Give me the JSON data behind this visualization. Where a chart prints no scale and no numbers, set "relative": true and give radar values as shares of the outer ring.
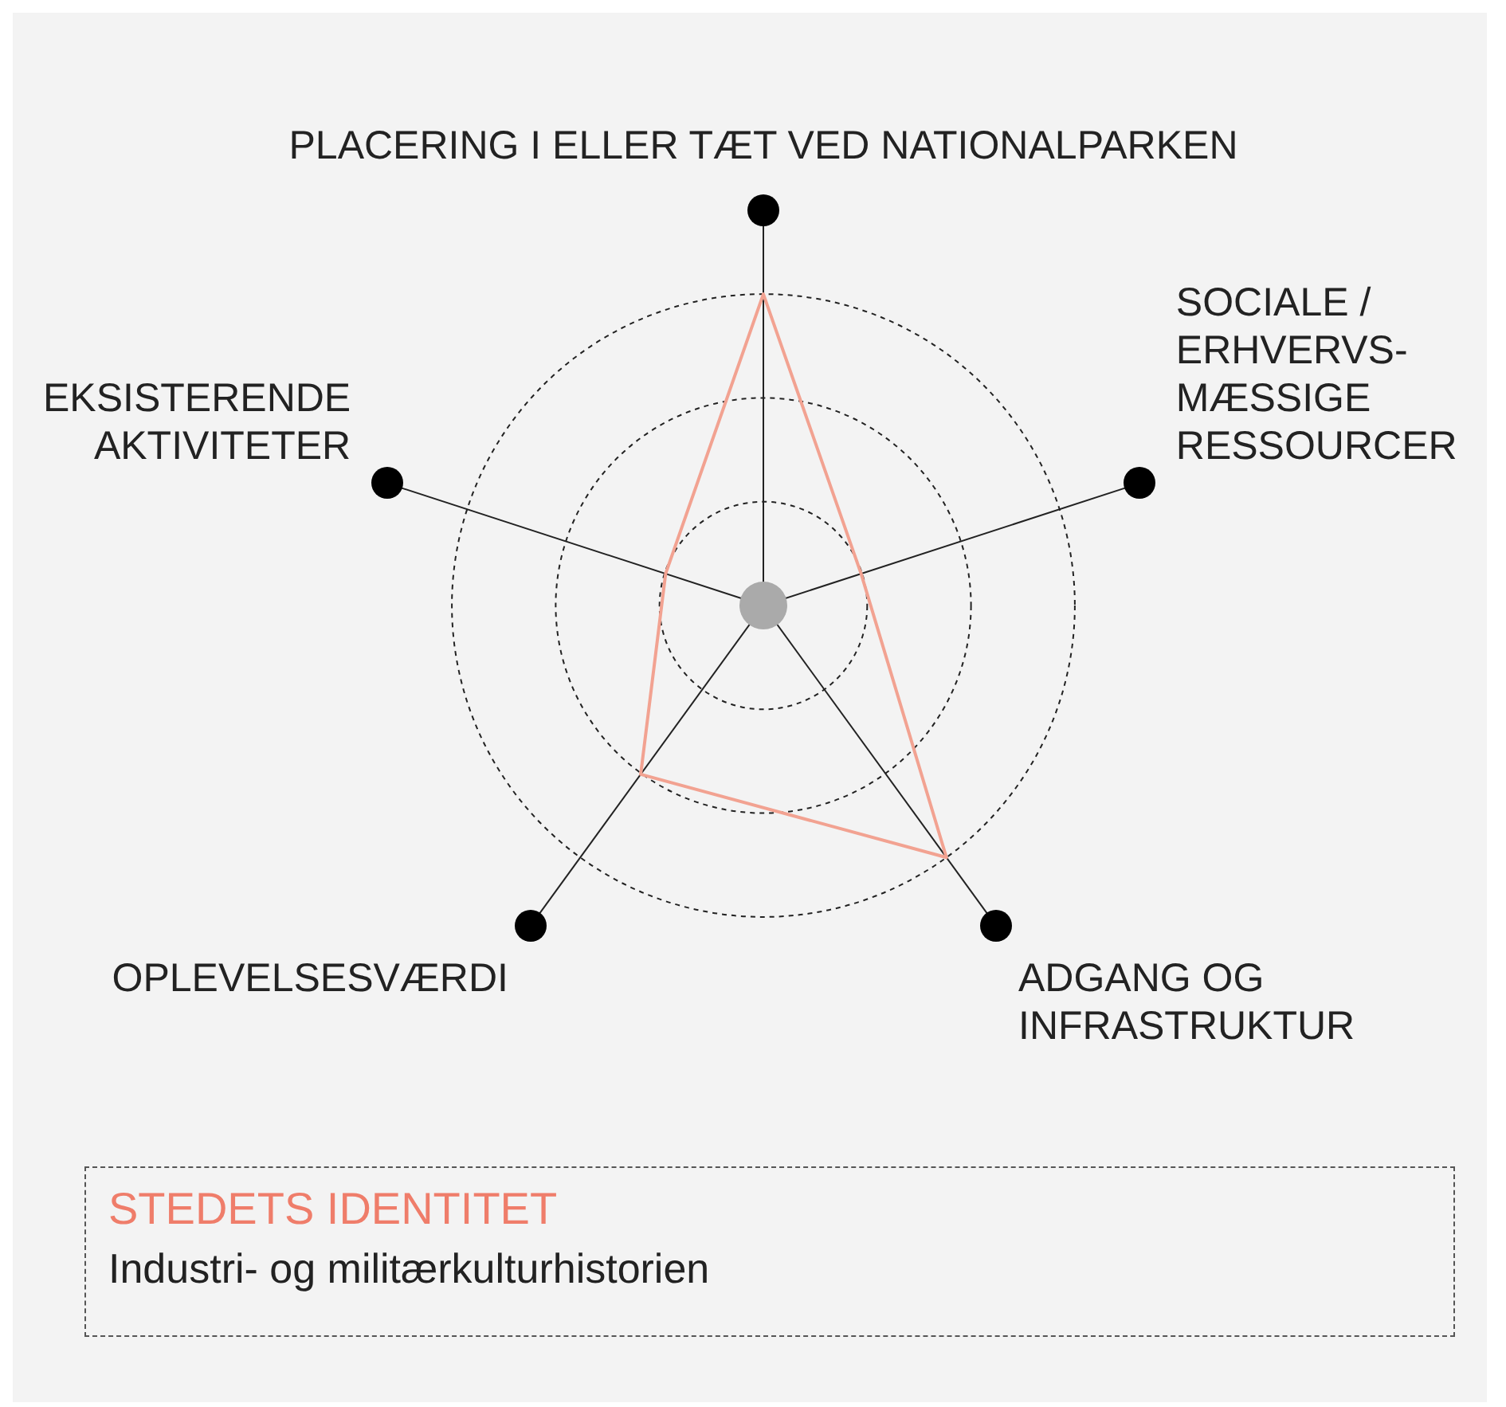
{
  "chart_data": {
    "type": "radar",
    "title": "STEDETS IDENTITET",
    "subtitle": "Industri- og militærkulturhistorien",
    "categories": [
      "PLACERING I ELLER TÆT VED NATIONALPARKEN",
      "SOCIALE / ERHVERVS-MÆSSIGE RESSOURCER",
      "ADGANG OG INFRASTRUKTUR",
      "OPLEVELSESVÆRDI",
      "EKSISTERENDE AKTIVITETER"
    ],
    "series": [
      {
        "color": "#f2a291",
        "values": [
          1,
          0.33,
          1,
          0.67,
          0.33
        ]
      }
    ],
    "relative": true,
    "grid": true,
    "legend": false,
    "marker": "none",
    "line_style": "solid"
  }
}
